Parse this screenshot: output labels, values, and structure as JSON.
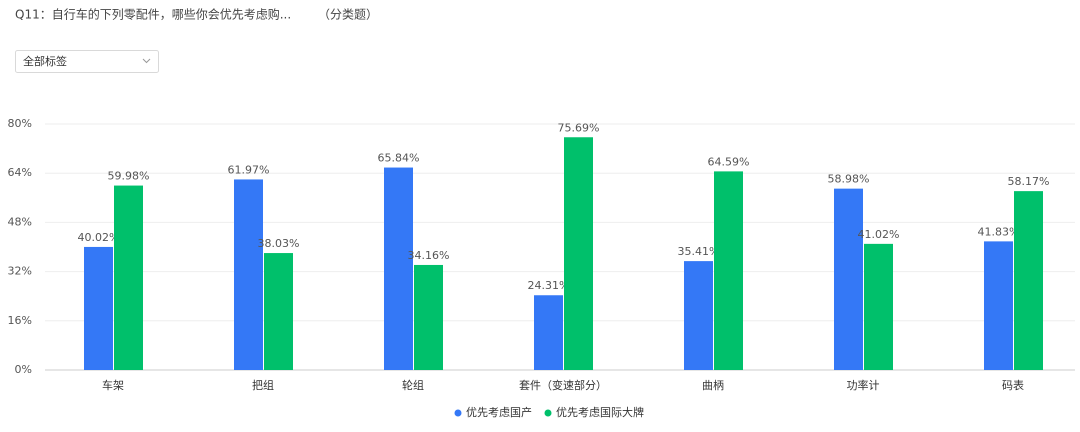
{
  "filter": "全部标签",
  "chart_data": {
    "type": "bar",
    "title": "Q11：自行车的下列零配件，哪些你会优先考虑购...",
    "subtitle": "（分类题）",
    "categories": [
      "车架",
      "把组",
      "轮组",
      "套件（变速部分）",
      "曲柄",
      "功率计",
      "码表"
    ],
    "series": [
      {
        "name": "优先考虑国产",
        "color": "#3478f6",
        "values": [
          40.02,
          61.97,
          65.84,
          24.31,
          35.41,
          58.98,
          41.83
        ],
        "value_labels": [
          "40.02%",
          "61.97%",
          "65.84%",
          "24.31%",
          "35.41%",
          "58.98%",
          "41.83%"
        ]
      },
      {
        "name": "优先考虑国际大牌",
        "color": "#00c06b",
        "values": [
          59.98,
          38.03,
          34.16,
          75.69,
          64.59,
          41.02,
          58.17
        ],
        "value_labels": [
          "59.98%",
          "38.03%",
          "34.16%",
          "75.69%",
          "64.59%",
          "41.02%",
          "58.17%"
        ]
      }
    ],
    "ylim": [
      0,
      80
    ],
    "yticks": [
      {
        "value": 0,
        "label": "0%"
      },
      {
        "value": 16,
        "label": "16%"
      },
      {
        "value": 32,
        "label": "32%"
      },
      {
        "value": 48,
        "label": "48%"
      },
      {
        "value": 64,
        "label": "64%"
      },
      {
        "value": 80,
        "label": "80%"
      }
    ],
    "grid": true,
    "legend": "bottom"
  }
}
